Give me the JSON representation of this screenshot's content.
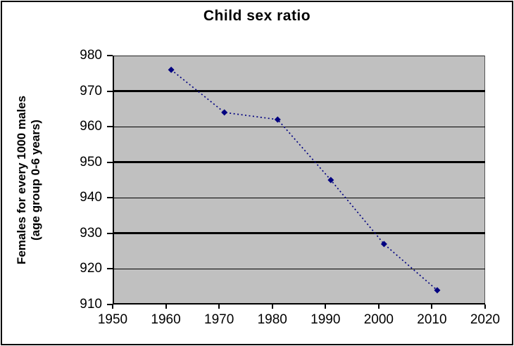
{
  "title": "Child sex ratio",
  "y_axis": {
    "label_line1": "Females for every 1000 males",
    "label_line2": "(age group 0-6 years)",
    "tick_labels": [
      "980",
      "970",
      "960",
      "950",
      "940",
      "930",
      "920",
      "910"
    ],
    "gridlines_thick": [
      970,
      950,
      930
    ],
    "gridlines_thin": [
      960,
      940,
      920
    ]
  },
  "x_axis": {
    "tick_labels": [
      "1950",
      "1960",
      "1970",
      "1980",
      "1990",
      "2000",
      "2010",
      "2020"
    ]
  },
  "colors": {
    "line": "#000080",
    "marker": "#000080",
    "plot_background": "#c0c0c0",
    "gridline": "#000000",
    "text": "#000000",
    "page_background": "#ffffff",
    "border": "#000000"
  },
  "chart_data": {
    "type": "line",
    "title": "Child sex ratio",
    "xlabel": "",
    "ylabel": "Females for every 1000 males (age group 0-6 years)",
    "x": [
      1961,
      1971,
      1981,
      1991,
      2001,
      2011
    ],
    "y": [
      976,
      964,
      962,
      945,
      927,
      914
    ],
    "xlim": [
      1950,
      2020
    ],
    "ylim": [
      910,
      980
    ],
    "x_ticks": [
      1950,
      1960,
      1970,
      1980,
      1990,
      2000,
      2010,
      2020
    ],
    "y_ticks": [
      910,
      920,
      930,
      940,
      950,
      960,
      970,
      980
    ],
    "grid": true,
    "legend": false,
    "line_style": "dash-dot",
    "marker": "diamond"
  }
}
